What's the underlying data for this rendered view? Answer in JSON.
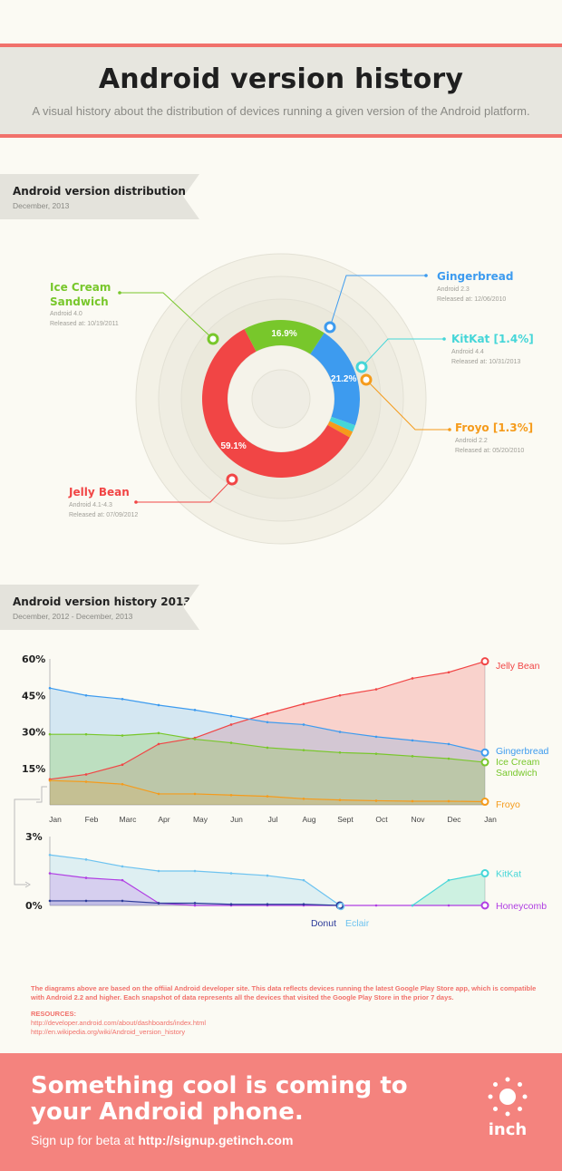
{
  "header": {
    "title": "Android version history",
    "subtitle": "A visual history about the distribution of devices running a given version of the Android platform."
  },
  "section1": {
    "title": "Android version distribution",
    "subtitle": "December, 2013"
  },
  "section2": {
    "title": "Android version history 2013",
    "subtitle": "December, 2012 - December, 2013"
  },
  "chart_data": [
    {
      "type": "pie",
      "slices": [
        {
          "name": "Gingerbread",
          "value": 21.2,
          "label": "21.2%",
          "color": "#3d9bef",
          "version": "Android 2.3",
          "released": "Released at: 12/06/2010"
        },
        {
          "name": "KitKat [1.4%]",
          "value": 1.4,
          "color": "#45d6d8",
          "version": "Android 4.4",
          "released": "Released at: 10/31/2013"
        },
        {
          "name": "Froyo [1.3%]",
          "value": 1.3,
          "color": "#f59b1b",
          "version": "Android 2.2",
          "released": "Released at: 05/20/2010"
        },
        {
          "name": "Jelly Bean",
          "value": 59.1,
          "label": "59.1%",
          "color": "#f14545",
          "version": "Android 4.1-4.3",
          "released": "Released at: 07/09/2012"
        },
        {
          "name": "Ice Cream Sandwich",
          "value": 16.9,
          "label": "16.9%",
          "color": "#78c72b",
          "version": "Android 4.0",
          "released": "Released at: 10/19/2011"
        }
      ]
    },
    {
      "type": "line",
      "categories": [
        "Jan",
        "Feb",
        "Marc",
        "Apr",
        "May",
        "Jun",
        "Jul",
        "Aug",
        "Sept",
        "Oct",
        "Nov",
        "Dec",
        "Jan"
      ],
      "yticks": [
        "60%",
        "45%",
        "30%",
        "15%"
      ],
      "ylim": [
        0,
        60
      ],
      "series": [
        {
          "name": "Jelly Bean",
          "color": "#f14545",
          "values": [
            10.5,
            12.5,
            16.5,
            25,
            27.5,
            33,
            37.5,
            41.5,
            45,
            47.5,
            52,
            54.5,
            59
          ]
        },
        {
          "name": "Gingerbread",
          "color": "#3d9bef",
          "values": [
            48,
            45,
            43.5,
            41,
            39,
            36.5,
            34,
            33,
            30,
            28,
            26.5,
            25,
            21.5
          ]
        },
        {
          "name": "Ice Cream Sandwich",
          "color": "#78c72b",
          "values": [
            29,
            29,
            28.5,
            29.5,
            27,
            25.5,
            23.5,
            22.5,
            21.5,
            21,
            20,
            19,
            17.5
          ]
        },
        {
          "name": "Froyo",
          "color": "#f59b1b",
          "values": [
            10,
            9.5,
            8.5,
            4.5,
            4.5,
            4,
            3.5,
            2.5,
            2,
            1.7,
            1.5,
            1.5,
            1.3
          ]
        }
      ]
    },
    {
      "type": "line",
      "categories": [
        "Jan",
        "Feb",
        "Marc",
        "Apr",
        "May",
        "Jun",
        "Jul",
        "Aug",
        "Sept",
        "Oct",
        "Nov",
        "Dec",
        "Jan"
      ],
      "yticks": [
        "3%",
        "0%"
      ],
      "ylim": [
        0,
        3
      ],
      "series": [
        {
          "name": "KitKat",
          "color": "#45d6d8",
          "values": [
            null,
            null,
            null,
            null,
            null,
            null,
            null,
            null,
            null,
            null,
            0,
            1.1,
            1.4
          ]
        },
        {
          "name": "Honeycomb",
          "color": "#b03ee3",
          "values": [
            1.4,
            1.2,
            1.1,
            0.1,
            0,
            0,
            0,
            0,
            0,
            0,
            0,
            0,
            0
          ]
        },
        {
          "name": "Donut",
          "color": "#2b3a99",
          "values": [
            0.2,
            0.2,
            0.2,
            0.1,
            0.1,
            0.05,
            0.05,
            0.05,
            0,
            null,
            null,
            null,
            null
          ]
        },
        {
          "name": "Eclair",
          "color": "#6ec3f0",
          "values": [
            2.2,
            2.0,
            1.7,
            1.5,
            1.5,
            1.4,
            1.3,
            1.1,
            0,
            null,
            null,
            null,
            null
          ]
        }
      ]
    }
  ],
  "footnote": "The diagrams above are based on the offiial Android developer site. This data reflects devices running the latest Google Play Store app, which is compatible with Android 2.2 and higher. Each snapshot of data represents all the devices that visited the Google Play Store in the prior 7 days.",
  "resources": {
    "heading": "RESOURCES:",
    "links": [
      "http://developer.android.com/about/dashboards/index.html",
      "http://en.wikipedia.org/wiki/Android_version_history"
    ]
  },
  "footer": {
    "cta": "Something cool is coming to your Android phone.",
    "signup_prefix": "Sign up for beta at ",
    "signup_url": "http://signup.getinch.com",
    "logo_text": "inch"
  }
}
